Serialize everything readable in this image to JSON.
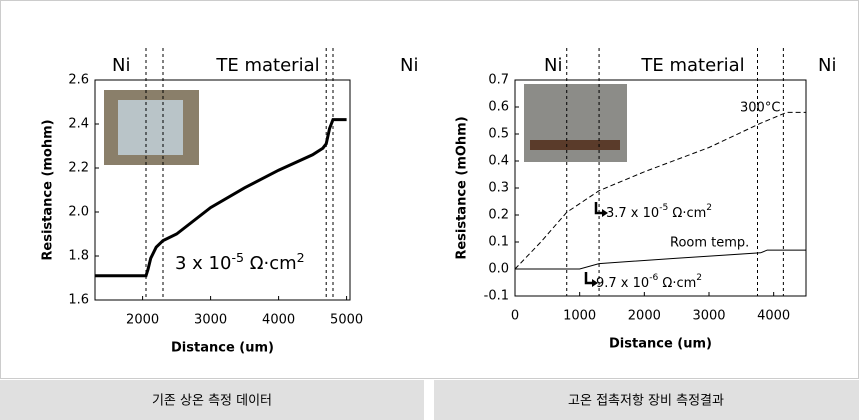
{
  "chart_data": [
    {
      "type": "line",
      "x_label": "Distance (um)",
      "y_label": "Resistance (mohm)",
      "x": [
        1300,
        2050,
        2080,
        2120,
        2200,
        2300,
        2500,
        3000,
        3500,
        4000,
        4500,
        4650,
        4700,
        4750,
        4800,
        5000
      ],
      "values": [
        1.71,
        1.71,
        1.74,
        1.79,
        1.84,
        1.87,
        1.9,
        2.02,
        2.11,
        2.19,
        2.26,
        2.29,
        2.31,
        2.38,
        2.42,
        2.42
      ],
      "color": "#000000",
      "xlim": [
        1300,
        5050
      ],
      "ylim": [
        1.6,
        2.6
      ],
      "xticks": [
        2000,
        3000,
        4000,
        5000
      ],
      "yticks": [
        1.6,
        1.8,
        {
          "value": 2,
          "label": "2.0"
        },
        2.2,
        2.4,
        2.6
      ],
      "vlines": [
        2050,
        2300,
        4700,
        4800
      ],
      "regions": [
        "Ni",
        "TE material",
        "Ni"
      ],
      "annotations": [
        [
          "3 x 10",
          "-5",
          " Ω·cm",
          "2"
        ]
      ]
    },
    {
      "type": "line",
      "x_label": "Distance (um)",
      "y_label": "Resistance (mOhm)",
      "series": [
        {
          "name": "300°C",
          "color": "#000000",
          "dashed": true,
          "x": [
            0,
            400,
            800,
            1300,
            2000,
            3000,
            3800,
            4200,
            4500
          ],
          "values": [
            0,
            0.1,
            0.21,
            0.29,
            0.36,
            0.45,
            0.54,
            0.58,
            0.58
          ]
        },
        {
          "name": "Room temp.",
          "color": "#000000",
          "dashed": false,
          "x": [
            0,
            1000,
            1300,
            2500,
            3800,
            3900,
            4500
          ],
          "values": [
            0,
            0,
            0.02,
            0.04,
            0.06,
            0.07,
            0.07
          ]
        }
      ],
      "name_colors": [
        "#e00000",
        "#000000"
      ],
      "xlim": [
        0,
        4500
      ],
      "ylim": [
        -0.1,
        0.7
      ],
      "xticks": [
        0,
        1000,
        2000,
        3000,
        4000
      ],
      "yticks": [
        -0.1,
        {
          "value": 0,
          "label": "0.0"
        },
        0.1,
        0.2,
        0.3,
        0.4,
        0.5,
        0.6,
        0.7
      ],
      "vlines": [
        800,
        1300,
        3750,
        4150
      ],
      "regions": [
        "Ni",
        "TE material",
        "Ni"
      ],
      "annotations": [
        [
          "3.7 x 10",
          "-5",
          " Ω·cm",
          "2"
        ],
        [
          "9.7 x 10",
          "-6",
          " Ω·cm",
          "2"
        ]
      ]
    }
  ],
  "captions": [
    "기존 상온 측정 데이터",
    "고온 접촉저항 장비 측정결과"
  ]
}
